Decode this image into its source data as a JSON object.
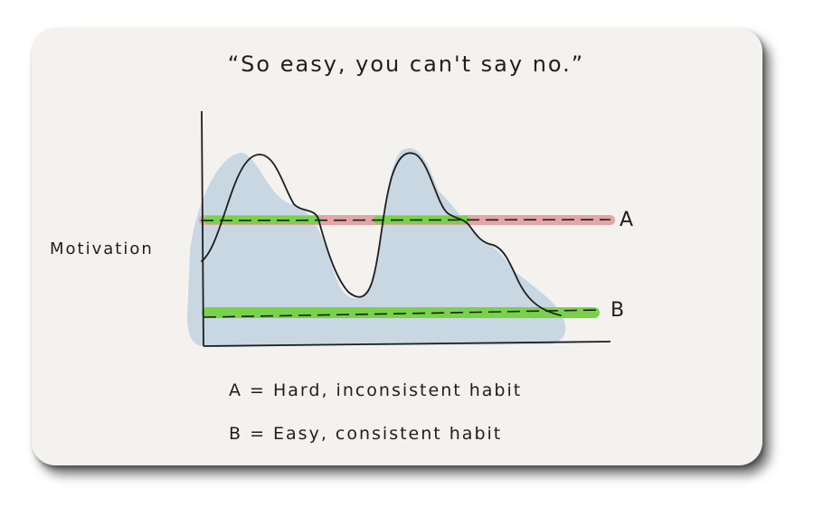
{
  "diagram": {
    "title": "“So easy, you can't say no.”",
    "y_axis_label": "Motivation",
    "line_a": {
      "label": "A",
      "color": "#e3a5a8",
      "highlight": "#78d24a"
    },
    "line_b": {
      "label": "B",
      "highlight": "#78d24a"
    },
    "motivation_fill": "#c5d5e0",
    "legend": [
      {
        "text": "A = Hard, inconsistent habit"
      },
      {
        "text": "B = Easy, consistent habit"
      }
    ]
  }
}
